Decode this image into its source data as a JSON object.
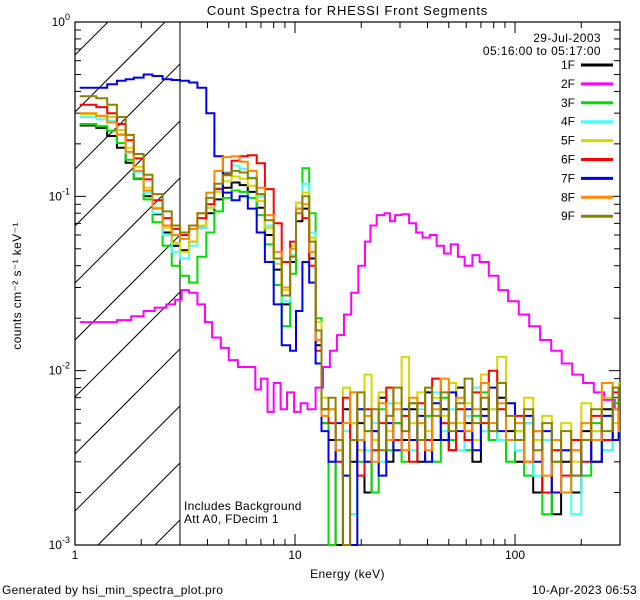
{
  "header": {
    "title": "Count Spectra for RHESSI Front Segments",
    "date_label": "29-Jul-2003",
    "time_range_label": "05:16:00 to 05:17:00"
  },
  "footer": {
    "left": "Generated by hsi_min_spectra_plot.pro",
    "right": "10-Apr-2023 06:53"
  },
  "chart_data": {
    "type": "line",
    "title": "Count Spectra for RHESSI Front Segments",
    "xlabel": "Energy (keV)",
    "ylabel": "counts cm⁻² s⁻¹ keV⁻¹",
    "xscale": "log",
    "yscale": "log",
    "xlim": [
      1,
      300
    ],
    "ylim": [
      0.001,
      1.0
    ],
    "x_major_ticks": [
      1,
      10,
      100
    ],
    "x_major_tick_labels": [
      "1",
      "10",
      "100"
    ],
    "y_major_tick_exponents": [
      0,
      -1,
      -2,
      -3
    ],
    "grid": false,
    "legend_position": "top-right",
    "low_energy_cutoff_kev": 3.0,
    "hatched_region": {
      "from_kev": 1.0,
      "to_kev": 3.0,
      "style": "diagonal-hatch"
    },
    "annotations": [
      "Includes Background",
      "Att A0, FDecim 1"
    ],
    "energies_low_kev": [
      1.05,
      1.15,
      1.25,
      1.4,
      1.55,
      1.7,
      1.85,
      2.05,
      2.25,
      2.5,
      2.75,
      3.0,
      3.3,
      3.6,
      3.95,
      4.3,
      4.7,
      5.15,
      5.6,
      6.1,
      6.7,
      7.3,
      8.0,
      8.7,
      9.5,
      10.1,
      10.8,
      11.6,
      12.4,
      13.2
    ],
    "energies_high_kev": [
      14.2,
      15.3,
      16.5,
      17.8,
      19.2,
      20.7,
      22.3,
      24,
      26,
      28,
      30.5,
      33,
      36,
      39,
      42,
      46,
      50,
      54,
      59,
      64,
      70,
      76,
      83,
      91,
      100,
      110,
      121,
      133,
      147,
      162,
      180,
      200,
      222,
      248,
      278,
      296
    ],
    "series": [
      {
        "label": "1F",
        "color": "#000000",
        "values_low": [
          0.255,
          0.255,
          0.247,
          0.222,
          0.19,
          0.156,
          0.126,
          0.1,
          0.079,
          0.062,
          0.052,
          0.049,
          0.055,
          0.066,
          0.08,
          0.096,
          0.112,
          0.12,
          0.116,
          0.106,
          0.086,
          0.06,
          0.038,
          0.024,
          0.042,
          0.072,
          0.085,
          0.044,
          0.014,
          0.005
        ],
        "values_high": [
          0.004,
          0.001,
          0.006,
          0.003,
          0.005,
          0.002,
          0.0045,
          0.007,
          0.003,
          0.005,
          0.004,
          0.006,
          0.003,
          0.0075,
          0.004,
          0.006,
          0.0035,
          0.008,
          0.005,
          0.003,
          0.006,
          0.004,
          0.007,
          0.0045,
          0.003,
          0.005,
          0.002,
          0.004,
          0.0015,
          0.003,
          0.002,
          0.0045,
          0.003,
          0.006,
          0.004,
          0.005
        ]
      },
      {
        "label": "2F",
        "color": "#ff00ff",
        "energies_kev": [
          1.05,
          1.3,
          1.55,
          1.8,
          2.05,
          2.3,
          2.6,
          2.85,
          3.05,
          3.3,
          3.6,
          3.9,
          4.2,
          4.6,
          5.0,
          5.5,
          6.0,
          6.6,
          7.0,
          7.5,
          8.0,
          8.6,
          9.2,
          9.9,
          10.6,
          11.4,
          12.4,
          13.4,
          14.4,
          15.5,
          16.7,
          18.0,
          19.4,
          20.8,
          22.0,
          23.5,
          25.5,
          27.0,
          28.5,
          30.5,
          33,
          35.5,
          38,
          41,
          44,
          47.5,
          51,
          55,
          59,
          64,
          69,
          76,
          84,
          93,
          104,
          116,
          130,
          146,
          163,
          182,
          204,
          228,
          254,
          284,
          296
        ],
        "values": [
          0.019,
          0.019,
          0.0195,
          0.0205,
          0.022,
          0.023,
          0.024,
          0.0255,
          0.029,
          0.028,
          0.024,
          0.019,
          0.0155,
          0.0135,
          0.0115,
          0.0105,
          0.0105,
          0.0078,
          0.009,
          0.0058,
          0.0085,
          0.006,
          0.0075,
          0.0058,
          0.0065,
          0.006,
          0.008,
          0.0105,
          0.013,
          0.016,
          0.021,
          0.028,
          0.04,
          0.055,
          0.068,
          0.078,
          0.08,
          0.072,
          0.078,
          0.079,
          0.07,
          0.062,
          0.058,
          0.06,
          0.052,
          0.047,
          0.053,
          0.045,
          0.04,
          0.046,
          0.042,
          0.035,
          0.029,
          0.025,
          0.021,
          0.018,
          0.015,
          0.013,
          0.011,
          0.0095,
          0.0085,
          0.0075,
          0.0068,
          0.006,
          0.0058
        ]
      },
      {
        "label": "3F",
        "color": "#00dd00",
        "values_low": [
          0.26,
          0.26,
          0.253,
          0.238,
          0.202,
          0.162,
          0.127,
          0.096,
          0.071,
          0.052,
          0.04,
          0.035,
          0.032,
          0.045,
          0.062,
          0.082,
          0.098,
          0.108,
          0.106,
          0.098,
          0.078,
          0.053,
          0.031,
          0.018,
          0.036,
          0.092,
          0.145,
          0.08,
          0.02,
          0.005
        ],
        "values_high": [
          0.001,
          0.004,
          0.0025,
          0.005,
          0.003,
          0.0045,
          0.002,
          0.006,
          0.0035,
          0.005,
          0.003,
          0.0065,
          0.004,
          0.0055,
          0.003,
          0.007,
          0.004,
          0.006,
          0.0035,
          0.0055,
          0.0075,
          0.004,
          0.006,
          0.003,
          0.0045,
          0.0025,
          0.004,
          0.0015,
          0.003,
          0.002,
          0.0035,
          0.0025,
          0.005,
          0.0035,
          0.0065,
          0.0045
        ]
      },
      {
        "label": "4F",
        "color": "#44ffff",
        "values_low": [
          0.285,
          0.285,
          0.277,
          0.272,
          0.228,
          0.178,
          0.138,
          0.105,
          0.08,
          0.06,
          0.048,
          0.044,
          0.052,
          0.066,
          0.086,
          0.112,
          0.138,
          0.15,
          0.144,
          0.128,
          0.1,
          0.068,
          0.041,
          0.025,
          0.046,
          0.092,
          0.118,
          0.062,
          0.017,
          0.0055
        ],
        "values_high": [
          0.005,
          0.003,
          0.0045,
          0.0015,
          0.006,
          0.0035,
          0.005,
          0.003,
          0.0065,
          0.004,
          0.0055,
          0.0035,
          0.006,
          0.004,
          0.0075,
          0.0045,
          0.006,
          0.0035,
          0.0055,
          0.008,
          0.0045,
          0.006,
          0.004,
          0.0065,
          0.0035,
          0.005,
          0.0025,
          0.004,
          0.002,
          0.0035,
          0.0015,
          0.003,
          0.0045,
          0.0035,
          0.006,
          0.004
        ]
      },
      {
        "label": "5F",
        "color": "#d8d800",
        "values_low": [
          0.295,
          0.295,
          0.287,
          0.285,
          0.24,
          0.19,
          0.148,
          0.112,
          0.086,
          0.066,
          0.054,
          0.048,
          0.055,
          0.068,
          0.086,
          0.106,
          0.122,
          0.13,
          0.126,
          0.115,
          0.094,
          0.066,
          0.041,
          0.029,
          0.052,
          0.092,
          0.105,
          0.058,
          0.019,
          0.007
        ],
        "values_high": [
          0.006,
          0.004,
          0.008,
          0.005,
          0.0035,
          0.0095,
          0.004,
          0.0075,
          0.0045,
          0.0065,
          0.012,
          0.005,
          0.0075,
          0.0045,
          0.007,
          0.0055,
          0.0085,
          0.005,
          0.0065,
          0.004,
          0.0095,
          0.006,
          0.012,
          0.0065,
          0.0045,
          0.007,
          0.004,
          0.0055,
          0.0035,
          0.005,
          0.003,
          0.0065,
          0.0045,
          0.007,
          0.005,
          0.0085
        ]
      },
      {
        "label": "6F",
        "color": "#ff0000",
        "values_low": [
          0.335,
          0.335,
          0.325,
          0.3,
          0.26,
          0.21,
          0.165,
          0.125,
          0.095,
          0.075,
          0.065,
          0.06,
          0.065,
          0.075,
          0.09,
          0.11,
          0.135,
          0.16,
          0.17,
          0.172,
          0.155,
          0.11,
          0.07,
          0.042,
          0.055,
          0.085,
          0.075,
          0.04,
          0.013,
          0.006
        ],
        "values_high": [
          0.005,
          0.003,
          0.007,
          0.004,
          0.0025,
          0.006,
          0.0035,
          0.005,
          0.008,
          0.004,
          0.0055,
          0.003,
          0.0065,
          0.004,
          0.009,
          0.005,
          0.0035,
          0.006,
          0.004,
          0.0075,
          0.005,
          0.01,
          0.006,
          0.004,
          0.0055,
          0.003,
          0.0045,
          0.002,
          0.0035,
          0.0025,
          0.004,
          0.003,
          0.0055,
          0.004,
          0.0075,
          0.005
        ]
      },
      {
        "label": "7F",
        "color": "#0000ee",
        "values_low": [
          0.42,
          0.42,
          0.42,
          0.44,
          0.46,
          0.47,
          0.48,
          0.5,
          0.49,
          0.47,
          0.465,
          0.46,
          0.45,
          0.42,
          0.3,
          0.17,
          0.105,
          0.095,
          0.1,
          0.085,
          0.062,
          0.042,
          0.024,
          0.014,
          0.013,
          0.022,
          0.042,
          0.032,
          0.011,
          0.0045
        ],
        "values_high": [
          0.003,
          0.005,
          0.0025,
          0.001,
          0.006,
          0.003,
          0.0045,
          0.0025,
          0.005,
          0.0035,
          0.006,
          0.004,
          0.0055,
          0.003,
          0.0065,
          0.004,
          0.0075,
          0.0045,
          0.006,
          0.0035,
          0.0055,
          0.008,
          0.0045,
          0.0065,
          0.004,
          0.0055,
          0.003,
          0.0045,
          0.002,
          0.0035,
          0.0025,
          0.004,
          0.003,
          0.0055,
          0.004,
          0.006
        ]
      },
      {
        "label": "8F",
        "color": "#ff8800",
        "values_low": [
          0.3,
          0.3,
          0.29,
          0.265,
          0.225,
          0.18,
          0.14,
          0.108,
          0.085,
          0.068,
          0.06,
          0.057,
          0.065,
          0.08,
          0.105,
          0.14,
          0.168,
          0.17,
          0.158,
          0.14,
          0.112,
          0.078,
          0.048,
          0.03,
          0.05,
          0.085,
          0.09,
          0.048,
          0.015,
          0.0055
        ],
        "values_high": [
          0.006,
          0.0035,
          0.005,
          0.0075,
          0.004,
          0.0055,
          0.003,
          0.0065,
          0.004,
          0.006,
          0.0035,
          0.007,
          0.005,
          0.0035,
          0.006,
          0.009,
          0.005,
          0.007,
          0.0045,
          0.006,
          0.0085,
          0.005,
          0.0065,
          0.004,
          0.005,
          0.003,
          0.0045,
          0.0025,
          0.004,
          0.002,
          0.0035,
          0.005,
          0.004,
          0.0085,
          0.006,
          0.0045
        ]
      },
      {
        "label": "9F",
        "color": "#8b8000",
        "values_low": [
          0.375,
          0.375,
          0.365,
          0.335,
          0.285,
          0.225,
          0.175,
          0.133,
          0.103,
          0.082,
          0.068,
          0.062,
          0.068,
          0.08,
          0.098,
          0.118,
          0.132,
          0.14,
          0.137,
          0.127,
          0.103,
          0.073,
          0.044,
          0.027,
          0.045,
          0.08,
          0.1,
          0.055,
          0.017,
          0.006
        ],
        "values_high": [
          0.007,
          0.004,
          0.001,
          0.004,
          0.0075,
          0.0045,
          0.006,
          0.0035,
          0.0055,
          0.008,
          0.0045,
          0.0065,
          0.004,
          0.008,
          0.0055,
          0.0075,
          0.0045,
          0.0065,
          0.009,
          0.005,
          0.007,
          0.0045,
          0.0085,
          0.0055,
          0.004,
          0.006,
          0.0035,
          0.005,
          0.003,
          0.0045,
          0.0025,
          0.004,
          0.006,
          0.0045,
          0.008,
          0.006
        ]
      }
    ]
  }
}
